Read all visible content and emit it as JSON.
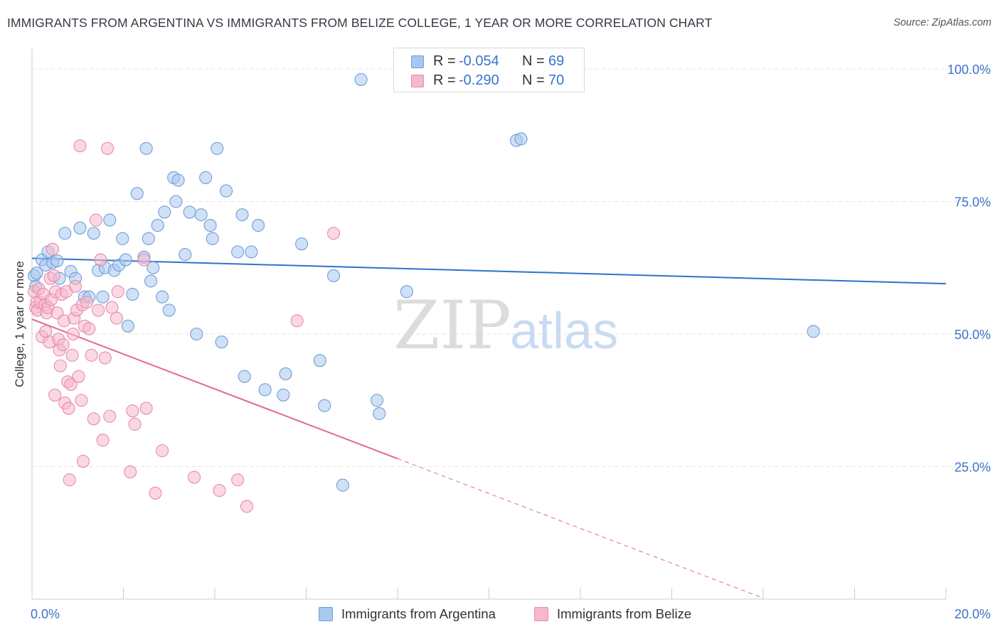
{
  "header": {
    "title": "IMMIGRANTS FROM ARGENTINA VS IMMIGRANTS FROM BELIZE COLLEGE, 1 YEAR OR MORE CORRELATION CHART",
    "source": "Source: ZipAtlas.com"
  },
  "watermark": {
    "zip": "ZIP",
    "atlas": "atlas"
  },
  "legend": {
    "r_label": "R =",
    "n_label": "N =",
    "rows": [
      {
        "r": "-0.054",
        "n": "69",
        "color": "#a9c8ef"
      },
      {
        "r": "-0.290",
        "n": "70",
        "color": "#f6b8cc"
      }
    ]
  },
  "colors": {
    "argentina_fill": "#a9c8ef",
    "argentina_stroke": "#6f9ed8",
    "argentina_line": "#2f72c9",
    "belize_fill": "#f6b8cc",
    "belize_stroke": "#e98aaa",
    "belize_line": "#e06a94",
    "tick_blue": "#3a73c8",
    "grid": "#e3e3e3"
  },
  "chart_data": {
    "type": "scatter",
    "title": "IMMIGRANTS FROM ARGENTINA VS IMMIGRANTS FROM BELIZE COLLEGE, 1 YEAR OR MORE CORRELATION CHART",
    "xlabel": "",
    "ylabel": "College, 1 year or more",
    "xlim": [
      0,
      20
    ],
    "ylim": [
      0,
      100
    ],
    "x_tick_labels": [
      "0.0%",
      "20.0%"
    ],
    "y_ticks": [
      25,
      50,
      75,
      100
    ],
    "y_tick_labels": [
      "25.0%",
      "50.0%",
      "75.0%",
      "100.0%"
    ],
    "x_minor_ticks": [
      2,
      4,
      6,
      8,
      10,
      12,
      14,
      16,
      18
    ],
    "series": [
      {
        "name": "Immigrants from Argentina",
        "r": -0.054,
        "n": 69,
        "trend": {
          "x": [
            0,
            20
          ],
          "y": [
            64.3,
            59.5
          ]
        },
        "points": [
          [
            0.05,
            61.0
          ],
          [
            0.08,
            59.0
          ],
          [
            0.1,
            61.5
          ],
          [
            0.22,
            64.0
          ],
          [
            0.3,
            63.0
          ],
          [
            0.35,
            65.5
          ],
          [
            0.45,
            63.5
          ],
          [
            0.55,
            63.8
          ],
          [
            0.6,
            60.5
          ],
          [
            0.72,
            69.0
          ],
          [
            0.85,
            61.8
          ],
          [
            0.95,
            60.5
          ],
          [
            1.05,
            70.0
          ],
          [
            1.15,
            57.0
          ],
          [
            1.25,
            57.0
          ],
          [
            1.35,
            69.0
          ],
          [
            1.45,
            62.0
          ],
          [
            1.55,
            57.0
          ],
          [
            1.6,
            62.5
          ],
          [
            1.7,
            71.5
          ],
          [
            1.8,
            62.0
          ],
          [
            1.9,
            63.0
          ],
          [
            1.98,
            68.0
          ],
          [
            2.05,
            64.0
          ],
          [
            2.1,
            51.5
          ],
          [
            2.2,
            57.5
          ],
          [
            2.3,
            76.5
          ],
          [
            2.45,
            64.5
          ],
          [
            2.5,
            85.0
          ],
          [
            2.55,
            68.0
          ],
          [
            2.6,
            60.0
          ],
          [
            2.65,
            62.5
          ],
          [
            2.75,
            70.5
          ],
          [
            2.85,
            57.0
          ],
          [
            2.9,
            73.0
          ],
          [
            3.0,
            54.5
          ],
          [
            3.1,
            79.5
          ],
          [
            3.15,
            75.0
          ],
          [
            3.2,
            79.0
          ],
          [
            3.35,
            65.0
          ],
          [
            3.45,
            73.0
          ],
          [
            3.6,
            50.0
          ],
          [
            3.7,
            72.5
          ],
          [
            3.8,
            79.5
          ],
          [
            3.9,
            70.5
          ],
          [
            3.95,
            68.0
          ],
          [
            4.05,
            85.0
          ],
          [
            4.15,
            48.5
          ],
          [
            4.25,
            77.0
          ],
          [
            4.5,
            65.5
          ],
          [
            4.6,
            72.5
          ],
          [
            4.65,
            42.0
          ],
          [
            4.8,
            65.5
          ],
          [
            4.95,
            70.5
          ],
          [
            5.1,
            39.5
          ],
          [
            5.5,
            38.5
          ],
          [
            5.55,
            42.5
          ],
          [
            5.9,
            67.0
          ],
          [
            6.3,
            45.0
          ],
          [
            6.4,
            36.5
          ],
          [
            6.6,
            61.0
          ],
          [
            6.8,
            21.5
          ],
          [
            7.2,
            98.0
          ],
          [
            7.55,
            37.5
          ],
          [
            7.6,
            35.0
          ],
          [
            8.2,
            58.0
          ],
          [
            10.6,
            86.5
          ],
          [
            10.7,
            86.8
          ],
          [
            17.1,
            50.5
          ]
        ]
      },
      {
        "name": "Immigrants from Belize",
        "r": -0.29,
        "n": 70,
        "trend": {
          "x": [
            0,
            8.0
          ],
          "y": [
            52.8,
            26.5
          ]
        },
        "trend_dashed": {
          "x": [
            8.0,
            16.0
          ],
          "y": [
            26.5,
            0.2
          ]
        },
        "points": [
          [
            0.05,
            58.0
          ],
          [
            0.08,
            55.0
          ],
          [
            0.1,
            56.0
          ],
          [
            0.12,
            54.5
          ],
          [
            0.15,
            58.5
          ],
          [
            0.18,
            56.0
          ],
          [
            0.22,
            49.5
          ],
          [
            0.25,
            57.5
          ],
          [
            0.28,
            55.5
          ],
          [
            0.3,
            50.5
          ],
          [
            0.32,
            54.0
          ],
          [
            0.35,
            55.0
          ],
          [
            0.38,
            48.5
          ],
          [
            0.4,
            60.5
          ],
          [
            0.42,
            56.5
          ],
          [
            0.45,
            66.0
          ],
          [
            0.48,
            61.0
          ],
          [
            0.5,
            38.5
          ],
          [
            0.52,
            58.0
          ],
          [
            0.55,
            54.0
          ],
          [
            0.58,
            49.0
          ],
          [
            0.6,
            47.0
          ],
          [
            0.62,
            44.0
          ],
          [
            0.65,
            57.5
          ],
          [
            0.68,
            48.0
          ],
          [
            0.7,
            52.5
          ],
          [
            0.72,
            37.0
          ],
          [
            0.75,
            58.0
          ],
          [
            0.78,
            41.0
          ],
          [
            0.8,
            36.0
          ],
          [
            0.82,
            22.5
          ],
          [
            0.85,
            40.5
          ],
          [
            0.88,
            46.0
          ],
          [
            0.9,
            50.0
          ],
          [
            0.92,
            53.0
          ],
          [
            0.95,
            59.0
          ],
          [
            0.98,
            54.5
          ],
          [
            1.02,
            42.0
          ],
          [
            1.05,
            85.5
          ],
          [
            1.08,
            37.5
          ],
          [
            1.1,
            55.5
          ],
          [
            1.12,
            26.0
          ],
          [
            1.15,
            51.5
          ],
          [
            1.2,
            56.0
          ],
          [
            1.25,
            51.0
          ],
          [
            1.3,
            46.0
          ],
          [
            1.35,
            34.0
          ],
          [
            1.4,
            71.5
          ],
          [
            1.45,
            54.5
          ],
          [
            1.5,
            64.0
          ],
          [
            1.55,
            30.0
          ],
          [
            1.6,
            45.5
          ],
          [
            1.65,
            85.0
          ],
          [
            1.7,
            34.5
          ],
          [
            1.75,
            55.0
          ],
          [
            1.85,
            53.0
          ],
          [
            1.88,
            58.0
          ],
          [
            2.15,
            24.0
          ],
          [
            2.2,
            35.5
          ],
          [
            2.25,
            33.0
          ],
          [
            2.5,
            36.0
          ],
          [
            2.7,
            20.0
          ],
          [
            2.85,
            28.0
          ],
          [
            2.45,
            64.0
          ],
          [
            3.55,
            23.0
          ],
          [
            4.1,
            20.5
          ],
          [
            4.5,
            22.5
          ],
          [
            4.7,
            17.5
          ],
          [
            5.8,
            52.5
          ],
          [
            6.6,
            69.0
          ]
        ]
      }
    ]
  }
}
